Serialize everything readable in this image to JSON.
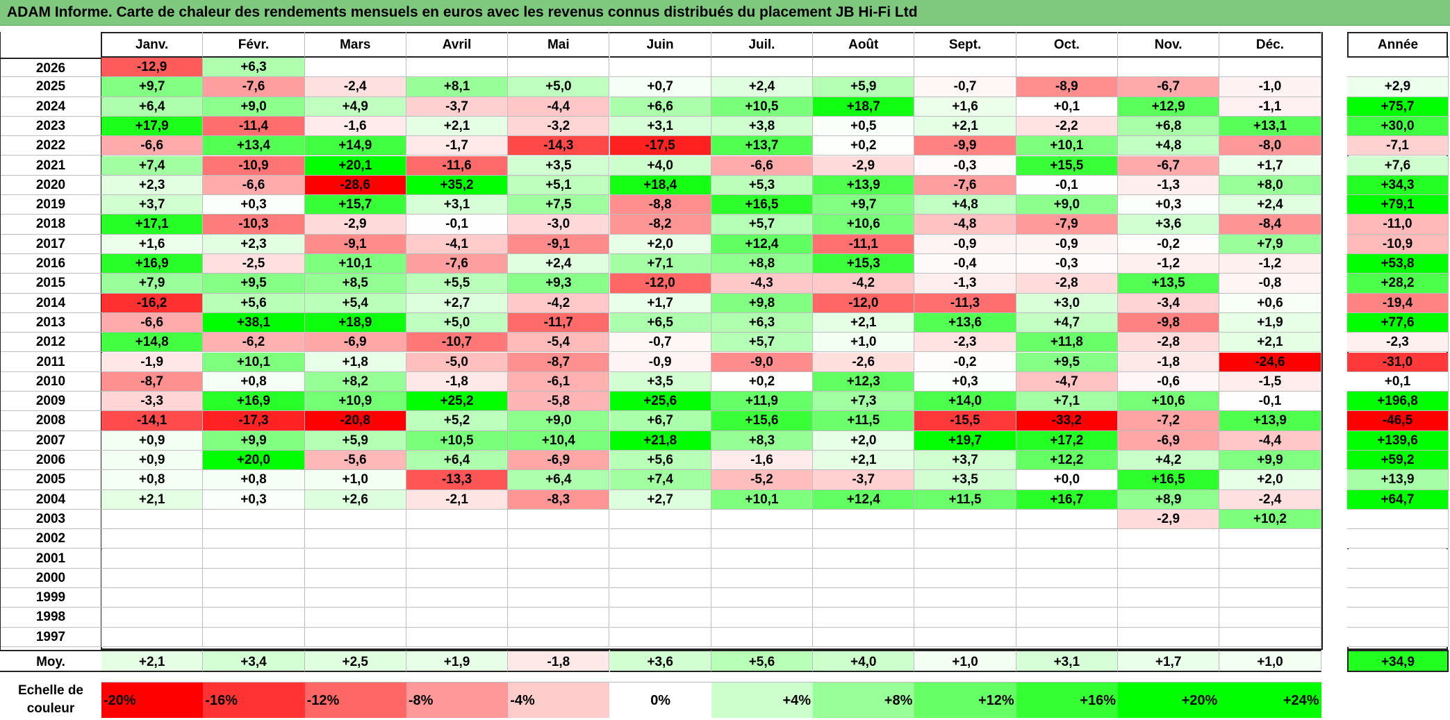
{
  "title": "ADAM Informe. Carte de chaleur des rendements mensuels en euros avec les revenus connus distribués du placement JB Hi-Fi Ltd",
  "annual_header": "Année",
  "average_label": "Moy.",
  "scale_label": "Echelle de couleur",
  "scale_labels": [
    "-20%",
    "-16%",
    "-12%",
    "-8%",
    "-4%",
    "0%",
    "+4%",
    "+8%",
    "+12%",
    "+16%",
    "+20%",
    "+24%"
  ],
  "colors": {
    "negative": "#ff0000",
    "positive": "#00ff00",
    "neutral": "#ffffff",
    "title_bg": "#7ec97e"
  },
  "chart_data": {
    "type": "heatmap",
    "months": [
      "Janv.",
      "Févr.",
      "Mars",
      "Avril",
      "Mai",
      "Juin",
      "Juil.",
      "Août",
      "Sept.",
      "Oct.",
      "Nov.",
      "Déc."
    ],
    "years": [
      "2026",
      "2025",
      "2024",
      "2023",
      "2022",
      "2021",
      "2020",
      "2019",
      "2018",
      "2017",
      "2016",
      "2015",
      "2014",
      "2013",
      "2012",
      "2011",
      "2010",
      "2009",
      "2008",
      "2007",
      "2006",
      "2005",
      "2004",
      "2003",
      "2002",
      "2001",
      "2000",
      "1999",
      "1998",
      "1997"
    ],
    "values": [
      [
        "-12,9",
        "+6,3",
        "",
        "",
        "",
        "",
        "",
        "",
        "",
        "",
        "",
        ""
      ],
      [
        "+9,7",
        "-7,6",
        "-2,4",
        "+8,1",
        "+5,0",
        "+0,7",
        "+2,4",
        "+5,9",
        "-0,7",
        "-8,9",
        "-6,7",
        "-1,0"
      ],
      [
        "+6,4",
        "+9,0",
        "+4,9",
        "-3,7",
        "-4,4",
        "+6,6",
        "+10,5",
        "+18,7",
        "+1,6",
        "+0,1",
        "+12,9",
        "-1,1"
      ],
      [
        "+17,9",
        "-11,4",
        "-1,6",
        "+2,1",
        "-3,2",
        "+3,1",
        "+3,8",
        "+0,5",
        "+2,1",
        "-2,2",
        "+6,8",
        "+13,1"
      ],
      [
        "-6,6",
        "+13,4",
        "+14,9",
        "-1,7",
        "-14,3",
        "-17,5",
        "+13,7",
        "+0,2",
        "-9,9",
        "+10,1",
        "+4,8",
        "-8,0"
      ],
      [
        "+7,4",
        "-10,9",
        "+20,1",
        "-11,6",
        "+3,5",
        "+4,0",
        "-6,6",
        "-2,9",
        "-0,3",
        "+15,5",
        "-6,7",
        "+1,7"
      ],
      [
        "+2,3",
        "-6,6",
        "-28,6",
        "+35,2",
        "+5,1",
        "+18,4",
        "+5,3",
        "+13,9",
        "-7,6",
        "-0,1",
        "-1,3",
        "+8,0"
      ],
      [
        "+3,7",
        "+0,3",
        "+15,7",
        "+3,1",
        "+7,5",
        "-8,8",
        "+16,5",
        "+9,7",
        "+4,8",
        "+9,0",
        "+0,3",
        "+2,4"
      ],
      [
        "+17,1",
        "-10,3",
        "-2,9",
        "-0,1",
        "-3,0",
        "-8,2",
        "+5,7",
        "+10,6",
        "-4,8",
        "-7,9",
        "+3,6",
        "-8,4"
      ],
      [
        "+1,6",
        "+2,3",
        "-9,1",
        "-4,1",
        "-9,1",
        "+2,0",
        "+12,4",
        "-11,1",
        "-0,9",
        "-0,9",
        "-0,2",
        "+7,9"
      ],
      [
        "+16,9",
        "-2,5",
        "+10,1",
        "-7,6",
        "+2,4",
        "+7,1",
        "+8,8",
        "+15,3",
        "-0,4",
        "-0,3",
        "-1,2",
        "-1,2"
      ],
      [
        "+7,9",
        "+9,5",
        "+8,5",
        "+5,5",
        "+9,3",
        "-12,0",
        "-4,3",
        "-4,2",
        "-1,3",
        "-2,8",
        "+13,5",
        "-0,8"
      ],
      [
        "-16,2",
        "+5,6",
        "+5,4",
        "+2,7",
        "-4,2",
        "+1,7",
        "+9,8",
        "-12,0",
        "-11,3",
        "+3,0",
        "-3,4",
        "+0,6"
      ],
      [
        "-6,6",
        "+38,1",
        "+18,9",
        "+5,0",
        "-11,7",
        "+6,5",
        "+6,3",
        "+2,1",
        "+13,6",
        "+4,7",
        "-9,8",
        "+1,9"
      ],
      [
        "+14,8",
        "-6,2",
        "-6,9",
        "-10,7",
        "-5,4",
        "-0,7",
        "+5,7",
        "+1,0",
        "-2,3",
        "+11,8",
        "-2,8",
        "+2,1"
      ],
      [
        "-1,9",
        "+10,1",
        "+1,8",
        "-5,0",
        "-8,7",
        "-0,9",
        "-9,0",
        "-2,6",
        "-0,2",
        "+9,5",
        "-1,8",
        "-24,6"
      ],
      [
        "-8,7",
        "+0,8",
        "+8,2",
        "-1,8",
        "-6,1",
        "+3,5",
        "+0,2",
        "+12,3",
        "+0,3",
        "-4,7",
        "-0,6",
        "-1,5"
      ],
      [
        "-3,3",
        "+16,9",
        "+10,9",
        "+25,2",
        "-5,8",
        "+25,6",
        "+11,9",
        "+7,3",
        "+14,0",
        "+7,1",
        "+10,6",
        "-0,1"
      ],
      [
        "-14,1",
        "-17,3",
        "-20,8",
        "+5,2",
        "+9,0",
        "+6,7",
        "+15,6",
        "+11,5",
        "-15,5",
        "-33,2",
        "-7,2",
        "+13,9"
      ],
      [
        "+0,9",
        "+9,9",
        "+5,9",
        "+10,5",
        "+10,4",
        "+21,8",
        "+8,3",
        "+2,0",
        "+19,7",
        "+17,2",
        "-6,9",
        "-4,4"
      ],
      [
        "+0,9",
        "+20,0",
        "-5,6",
        "+6,4",
        "-6,9",
        "+5,6",
        "-1,6",
        "+2,1",
        "+3,7",
        "+12,2",
        "+4,2",
        "+9,9"
      ],
      [
        "+0,8",
        "+0,8",
        "+1,0",
        "-13,3",
        "+6,4",
        "+7,4",
        "-5,2",
        "-3,7",
        "+3,5",
        "+0,0",
        "+16,5",
        "+2,0"
      ],
      [
        "+2,1",
        "+0,3",
        "+2,6",
        "-2,1",
        "-8,3",
        "+2,7",
        "+10,1",
        "+12,4",
        "+11,5",
        "+16,7",
        "+8,9",
        "-2,4"
      ],
      [
        "",
        "",
        "",
        "",
        "",
        "",
        "",
        "",
        "",
        "",
        "-2,9",
        "+10,2"
      ],
      [
        "",
        "",
        "",
        "",
        "",
        "",
        "",
        "",
        "",
        "",
        "",
        ""
      ],
      [
        "",
        "",
        "",
        "",
        "",
        "",
        "",
        "",
        "",
        "",
        "",
        ""
      ],
      [
        "",
        "",
        "",
        "",
        "",
        "",
        "",
        "",
        "",
        "",
        "",
        ""
      ],
      [
        "",
        "",
        "",
        "",
        "",
        "",
        "",
        "",
        "",
        "",
        "",
        ""
      ],
      [
        "",
        "",
        "",
        "",
        "",
        "",
        "",
        "",
        "",
        "",
        "",
        ""
      ],
      [
        "",
        "",
        "",
        "",
        "",
        "",
        "",
        "",
        "",
        "",
        "",
        ""
      ]
    ],
    "annual": [
      "",
      "+2,9",
      "+75,7",
      "+30,0",
      "-7,1",
      "+7,6",
      "+34,3",
      "+79,1",
      "-11,0",
      "-10,9",
      "+53,8",
      "+28,2",
      "-19,4",
      "+77,6",
      "-2,3",
      "-31,0",
      "+0,1",
      "+196,8",
      "-46,5",
      "+139,6",
      "+59,2",
      "+13,9",
      "+64,7",
      "",
      "",
      "",
      "",
      "",
      "",
      ""
    ],
    "averages": [
      "+2,1",
      "+3,4",
      "+2,5",
      "+1,9",
      "-1,8",
      "+3,6",
      "+5,6",
      "+4,0",
      "+1,0",
      "+3,1",
      "+1,7",
      "+1,0"
    ],
    "average_annual": "+34,9",
    "scale_values": [
      -20,
      -16,
      -12,
      -8,
      -4,
      0,
      4,
      8,
      12,
      16,
      20,
      24
    ]
  }
}
